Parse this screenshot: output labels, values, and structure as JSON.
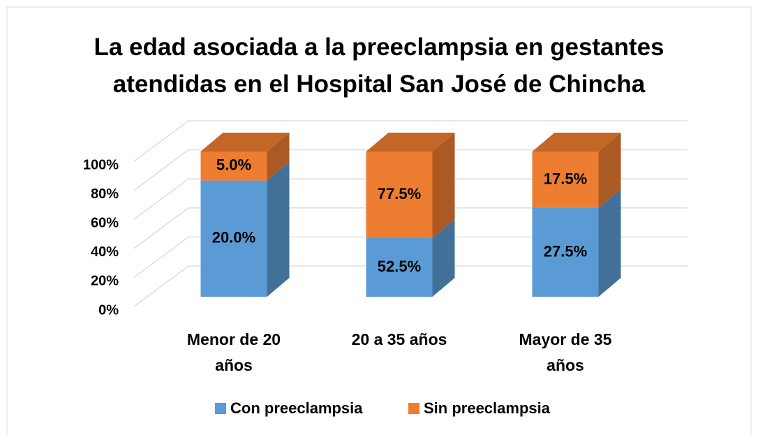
{
  "chart_data": {
    "type": "bar",
    "stacking": "percent",
    "title": "La edad asociada a la preeclampsia en gestantes atendidas en el Hospital San José de Chincha",
    "categories": [
      "Menor de 20 años",
      "20 a 35 años",
      "Mayor de 35 años"
    ],
    "series": [
      {
        "name": "Con preeclampsia",
        "color": "#5b9bd5",
        "values": [
          20,
          52.5,
          27.5
        ],
        "value_labels": [
          "20.0%",
          "52.5%",
          "27.5%"
        ]
      },
      {
        "name": "Sin preeclampsia",
        "color": "#ed7d31",
        "values": [
          5,
          77.5,
          17.5
        ],
        "value_labels": [
          "5.0%",
          "77.5%",
          "17.5%"
        ]
      }
    ],
    "ylim": [
      0,
      100
    ],
    "yticks": [
      {
        "value": 0,
        "label": "0%"
      },
      {
        "value": 20,
        "label": "20%"
      },
      {
        "value": 40,
        "label": "40%"
      },
      {
        "value": 60,
        "label": "60%"
      },
      {
        "value": 80,
        "label": "80%"
      },
      {
        "value": 100,
        "label": "100%"
      }
    ],
    "grid": true,
    "legend": "bottom"
  }
}
